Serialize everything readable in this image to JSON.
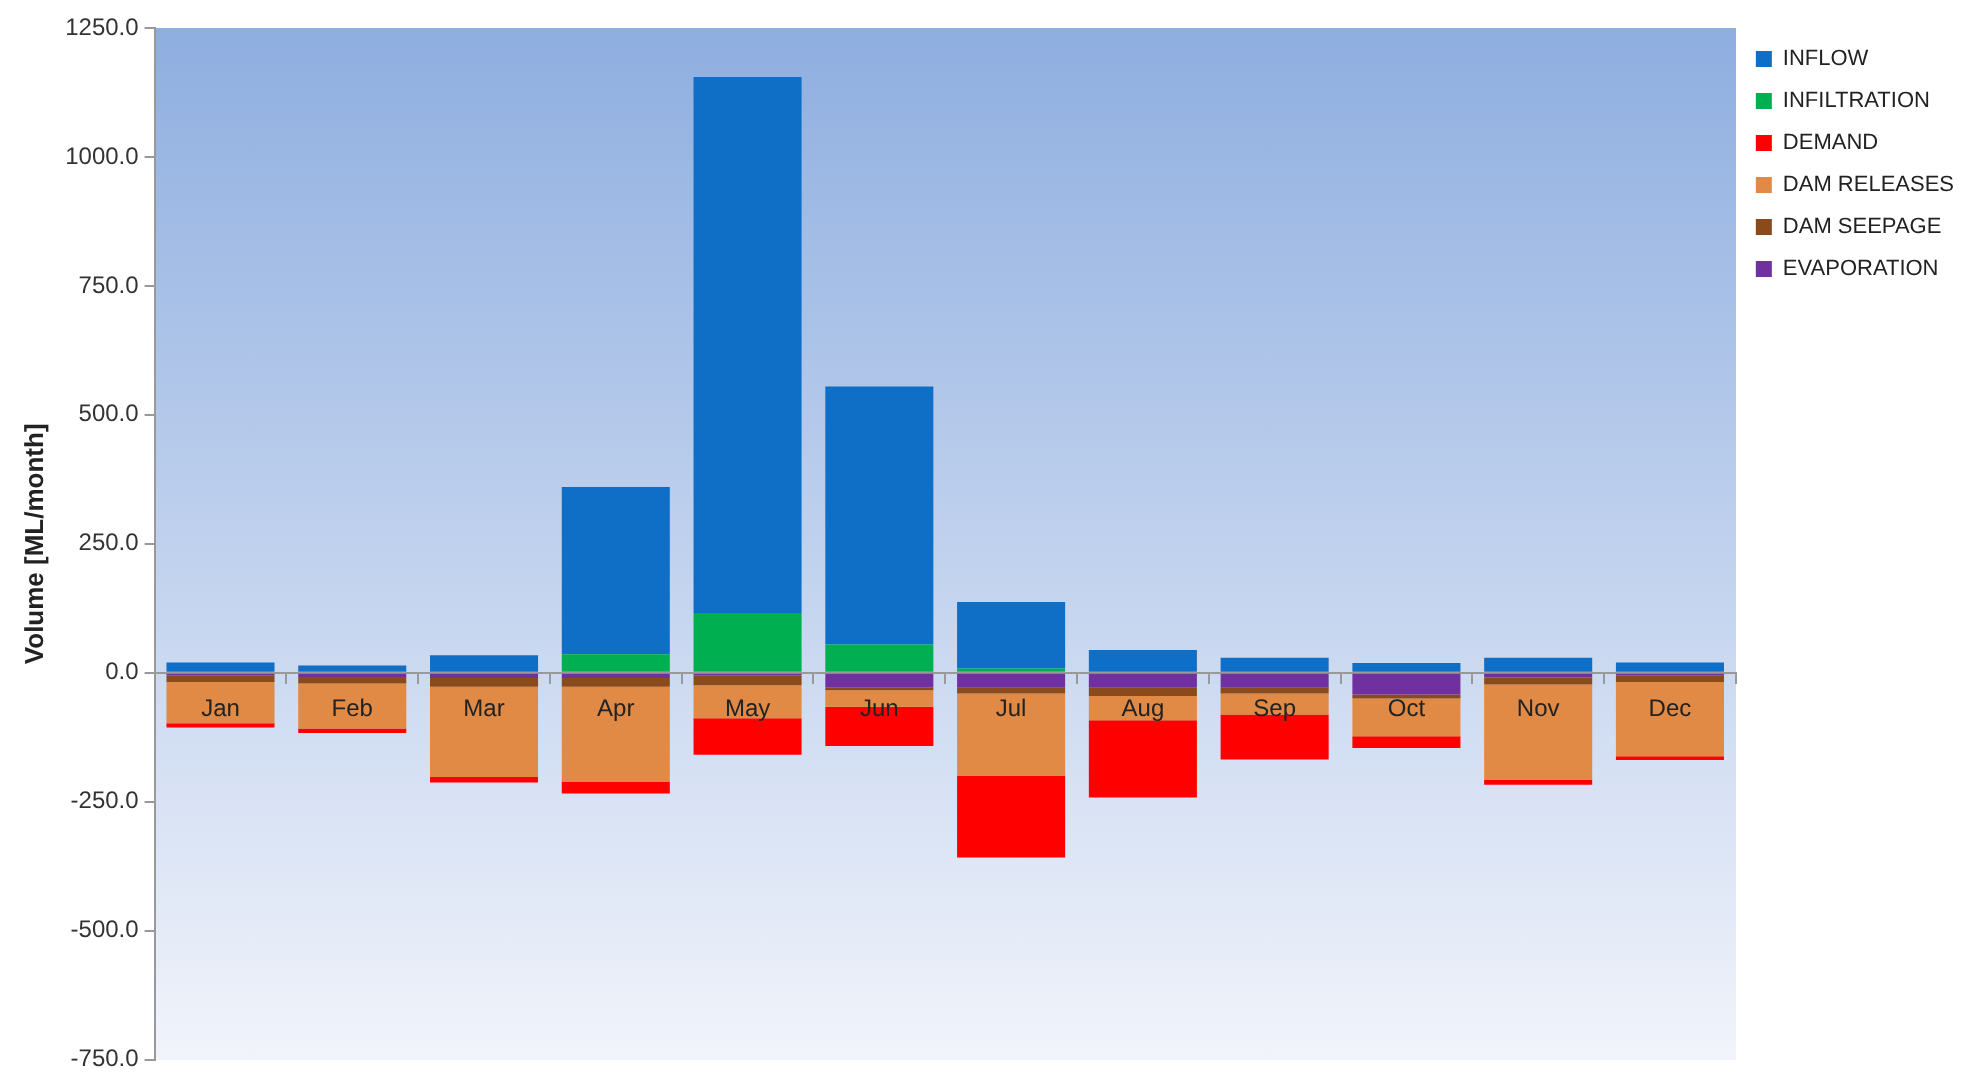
{
  "chart_data": {
    "type": "bar",
    "stacked": true,
    "ylabel": "Volume [ML/month]",
    "categories": [
      "Jan",
      "Feb",
      "Mar",
      "Apr",
      "May",
      "Jun",
      "Jul",
      "Aug",
      "Sep",
      "Oct",
      "Nov",
      "Dec"
    ],
    "series": [
      {
        "name": "EVAPORATION",
        "color": "#7030a0",
        "values": [
          -5,
          -8,
          -10,
          -10,
          -5,
          -28,
          -29,
          -29,
          -29,
          -42,
          -9,
          -5
        ]
      },
      {
        "name": "DAM SEEPAGE",
        "color": "#8b4a1c",
        "values": [
          -13,
          -13,
          -17,
          -17,
          -19,
          -6,
          -11,
          -16,
          -11,
          -8,
          -14,
          -13
        ]
      },
      {
        "name": "DAM RELEASES",
        "color": "#e08a45",
        "values": [
          -80,
          -87,
          -175,
          -184,
          -64,
          -32,
          -160,
          -47,
          -41,
          -73,
          -185,
          -144
        ]
      },
      {
        "name": "DEMAND",
        "color": "#ff0000",
        "values": [
          -8,
          -9,
          -11,
          -23,
          -71,
          -76,
          -158,
          -150,
          -87,
          -23,
          -9,
          -7
        ]
      },
      {
        "name": "INFILTRATION",
        "color": "#00b050",
        "values": [
          0,
          0,
          0,
          36,
          116,
          55,
          8,
          0,
          0,
          0,
          0,
          0
        ]
      },
      {
        "name": "INFLOW",
        "color": "#0f6fc6",
        "values": [
          20,
          14,
          34,
          324,
          1039,
          500,
          129,
          44,
          29,
          19,
          29,
          20
        ]
      }
    ],
    "ylim": [
      -750,
      1250
    ],
    "yticks": [
      {
        "value": -750,
        "label": "-750.0"
      },
      {
        "value": -500,
        "label": "-500.0"
      },
      {
        "value": -250,
        "label": "-250.0"
      },
      {
        "value": 0,
        "label": "0.0"
      },
      {
        "value": 250,
        "label": "250.0"
      },
      {
        "value": 500,
        "label": "500.0"
      },
      {
        "value": 750,
        "label": "750.0"
      },
      {
        "value": 1000,
        "label": "1000.0"
      },
      {
        "value": 1250,
        "label": "1250.0"
      }
    ],
    "grid": false,
    "legend": "top right"
  }
}
